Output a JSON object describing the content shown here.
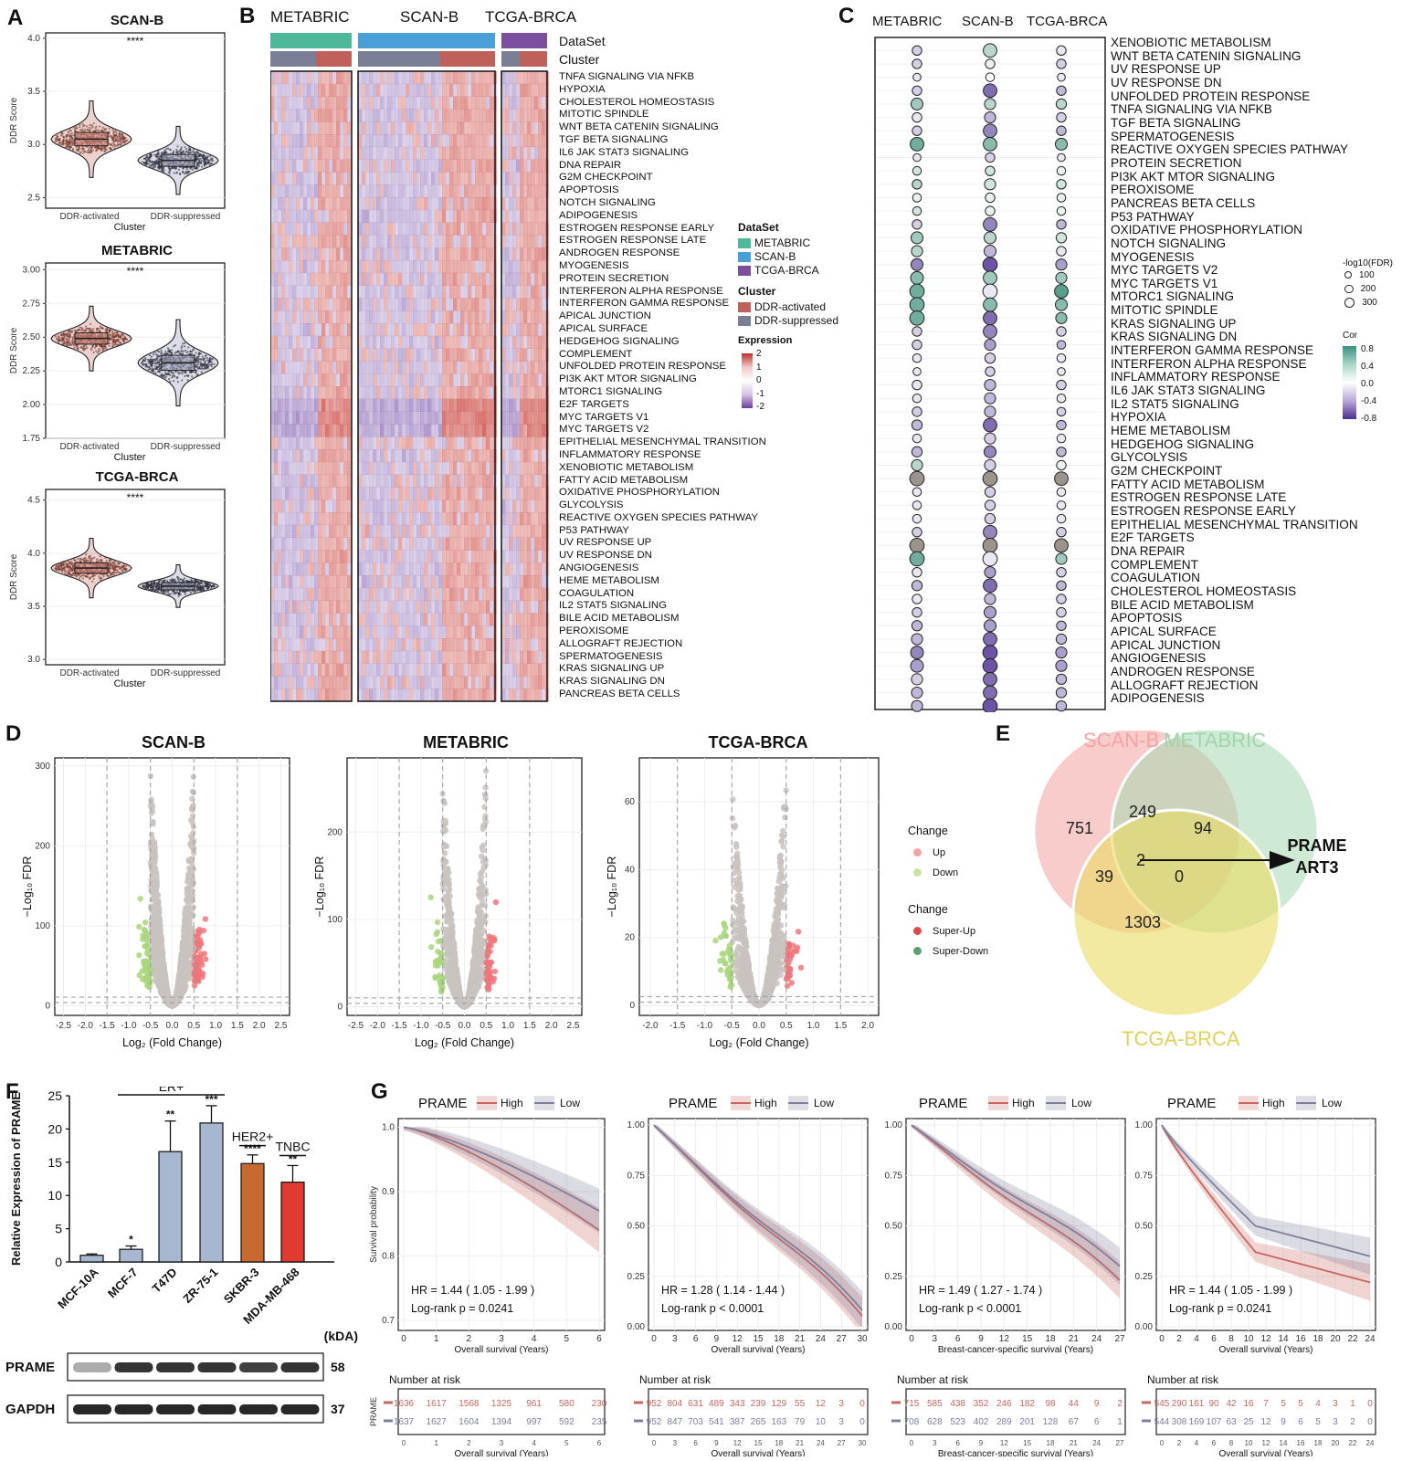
{
  "panelA": {
    "label": "A",
    "plots": [
      {
        "title": "SCAN-B",
        "sig": "****",
        "yticks": [
          "4.0",
          "3.5",
          "3.0",
          "2.5"
        ],
        "ylabel": "DDR Score",
        "xticks": [
          "DDR-activated",
          "DDR-suppressed"
        ],
        "xlabel": "Cluster"
      },
      {
        "title": "METABRIC",
        "sig": "****",
        "yticks": [
          "3.00",
          "2.75",
          "2.50",
          "2.25",
          "2.00",
          "1.75"
        ],
        "ylabel": "DDR Score",
        "xticks": [
          "DDR-activated",
          "DDR-suppressed"
        ],
        "xlabel": "Cluster"
      },
      {
        "title": "TCGA-BRCA",
        "sig": "****",
        "yticks": [
          "4.5",
          "4.0",
          "3.5",
          "3.0"
        ],
        "ylabel": "DDR Score",
        "xticks": [
          "DDR-activated",
          "DDR-suppressed"
        ],
        "xlabel": "Cluster"
      }
    ]
  },
  "panelB": {
    "label": "B",
    "datasets": [
      "METABRIC",
      "SCAN-B",
      "TCGA-BRCA"
    ],
    "track_dataset": "DataSet",
    "track_cluster": "Cluster",
    "rows": [
      "TNFA SIGNALING VIA NFKB",
      "HYPOXIA",
      "CHOLESTEROL HOMEOSTASIS",
      "MITOTIC SPINDLE",
      "WNT BETA CATENIN SIGNALING",
      "TGF BETA SIGNALING",
      "IL6 JAK STAT3 SIGNALING",
      "DNA REPAIR",
      "G2M CHECKPOINT",
      "APOPTOSIS",
      "NOTCH SIGNALING",
      "ADIPOGENESIS",
      "ESTROGEN RESPONSE EARLY",
      "ESTROGEN RESPONSE LATE",
      "ANDROGEN RESPONSE",
      "MYOGENESIS",
      "PROTEIN SECRETION",
      "INTERFERON ALPHA RESPONSE",
      "INTERFERON GAMMA RESPONSE",
      "APICAL JUNCTION",
      "APICAL SURFACE",
      "HEDGEHOG SIGNALING",
      "COMPLEMENT",
      "UNFOLDED PROTEIN RESPONSE",
      "PI3K AKT MTOR SIGNALING",
      "MTORC1 SIGNALING",
      "E2F TARGETS",
      "MYC TARGETS V1",
      "MYC TARGETS V2",
      "EPITHELIAL MESENCHYMAL TRANSITION",
      "INFLAMMATORY RESPONSE",
      "XENOBIOTIC METABOLISM",
      "FATTY ACID METABOLISM",
      "OXIDATIVE PHOSPHORYLATION",
      "GLYCOLYSIS",
      "REACTIVE OXYGEN SPECIES PATHWAY",
      "P53 PATHWAY",
      "UV RESPONSE UP",
      "UV RESPONSE DN",
      "ANGIOGENESIS",
      "HEME METABOLISM",
      "COAGULATION",
      "IL2 STAT5 SIGNALING",
      "BILE ACID METABOLISM",
      "PEROXISOME",
      "ALLOGRAFT REJECTION",
      "SPERMATOGENESIS",
      "KRAS SIGNALING UP",
      "KRAS SIGNALING DN",
      "PANCREAS BETA CELLS"
    ],
    "legend": {
      "dataset_title": "DataSet",
      "datasets": [
        {
          "name": "METABRIC",
          "color": "#4fb89a"
        },
        {
          "name": "SCAN-B",
          "color": "#4a9fd6"
        },
        {
          "name": "TCGA-BRCA",
          "color": "#7b4f9e"
        }
      ],
      "cluster_title": "Cluster",
      "clusters": [
        {
          "name": "DDR-activated",
          "color": "#c0605a"
        },
        {
          "name": "DDR-suppressed",
          "color": "#7b7f95"
        }
      ],
      "expr_title": "Expression",
      "expr_ticks": [
        "2",
        "1",
        "0",
        "-1",
        "-2"
      ]
    }
  },
  "panelC": {
    "label": "C",
    "columns": [
      "METABRIC",
      "SCAN-B",
      "TCGA-BRCA"
    ],
    "rows": [
      "XENOBIOTIC METABOLISM",
      "WNT BETA CATENIN SIGNALING",
      "UV RESPONSE UP",
      "UV RESPONSE DN",
      "UNFOLDED PROTEIN RESPONSE",
      "TNFA SIGNALING VIA NFKB",
      "TGF BETA SIGNALING",
      "SPERMATOGENESIS",
      "REACTIVE OXYGEN SPECIES PATHWAY",
      "PROTEIN SECRETION",
      "PI3K AKT MTOR SIGNALING",
      "PEROXISOME",
      "PANCREAS BETA CELLS",
      "P53 PATHWAY",
      "OXIDATIVE PHOSPHORYLATION",
      "NOTCH SIGNALING",
      "MYOGENESIS",
      "MYC TARGETS V2",
      "MYC TARGETS V1",
      "MTORC1 SIGNALING",
      "MITOTIC SPINDLE",
      "KRAS SIGNALING UP",
      "KRAS SIGNALING DN",
      "INTERFERON GAMMA RESPONSE",
      "INTERFERON ALPHA RESPONSE",
      "INFLAMMATORY RESPONSE",
      "IL6 JAK STAT3 SIGNALING",
      "IL2 STAT5 SIGNALING",
      "HYPOXIA",
      "HEME METABOLISM",
      "HEDGEHOG SIGNALING",
      "GLYCOLYSIS",
      "G2M CHECKPOINT",
      "FATTY ACID METABOLISM",
      "ESTROGEN RESPONSE LATE",
      "ESTROGEN RESPONSE EARLY",
      "EPITHELIAL MESENCHYMAL TRANSITION",
      "E2F TARGETS",
      "DNA REPAIR",
      "COMPLEMENT",
      "COAGULATION",
      "CHOLESTEROL HOMEOSTASIS",
      "BILE ACID METABOLISM",
      "APOPTOSIS",
      "APICAL SURFACE",
      "APICAL JUNCTION",
      "ANGIOGENESIS",
      "ANDROGEN RESPONSE",
      "ALLOGRAFT REJECTION",
      "ADIPOGENESIS"
    ],
    "legend": {
      "size_title": "-log10(FDR)",
      "sizes": [
        "100",
        "200",
        "300"
      ],
      "cor_title": "Cor",
      "cor_ticks": [
        "0.8",
        "0.4",
        "0.0",
        "-0.4",
        "-0.8"
      ]
    }
  },
  "panelD": {
    "label": "D",
    "plots": [
      {
        "title": "SCAN-B",
        "xticks": [
          "-2.5",
          "-2.0",
          "-1.5",
          "-1.0",
          "-0.5",
          "0.0",
          "0.5",
          "1.0",
          "1.5",
          "2.0",
          "2.5"
        ],
        "yticks": [
          "300",
          "200",
          "100",
          "0"
        ],
        "xlabel": "Log₂ (Fold Change)",
        "ylabel": "−Log₁₀ FDR"
      },
      {
        "title": "METABRIC",
        "xticks": [
          "-2.5",
          "-2.0",
          "-1.5",
          "-1.0",
          "-0.5",
          "0.0",
          "0.5",
          "1.0",
          "1.5",
          "2.0",
          "2.5"
        ],
        "yticks": [
          "200",
          "100",
          "0"
        ],
        "xlabel": "Log₂ (Fold Change)",
        "ylabel": "−Log₁₀ FDR"
      },
      {
        "title": "TCGA-BRCA",
        "xticks": [
          "-2.0",
          "-1.5",
          "-1.0",
          "-0.5",
          "0.0",
          "0.5",
          "1.0",
          "1.5",
          "2.0"
        ],
        "yticks": [
          "60",
          "40",
          "20",
          "0"
        ],
        "xlabel": "Log₂ (Fold Change)",
        "ylabel": "−Log₁₀ FDR"
      }
    ],
    "legend": {
      "title1": "Change",
      "items1": [
        {
          "name": "Up",
          "color": "#f4a3a3"
        },
        {
          "name": "Down",
          "color": "#c8e6a0"
        }
      ],
      "title2": "Change",
      "items2": [
        {
          "name": "Super-Up",
          "color": "#e04a4a"
        },
        {
          "name": "Super-Down",
          "color": "#5e9f6e"
        }
      ]
    }
  },
  "panelE": {
    "label": "E",
    "sets": [
      {
        "name": "SCAN-B",
        "color": "#f4a3a3"
      },
      {
        "name": "METABRIC",
        "color": "#a8d8b0"
      },
      {
        "name": "TCGA-BRCA",
        "color": "#e8dc60"
      }
    ],
    "counts": {
      "scan_only": "751",
      "scan_meta": "249",
      "meta_only": "94",
      "all": "2",
      "scan_tcga": "39",
      "meta_tcga": "0",
      "tcga_only": "1303"
    },
    "genes": [
      "PRAME",
      "ART3"
    ]
  },
  "panelF": {
    "label": "F",
    "ylabel": "Relative Expression of PRAME",
    "yticks": [
      "25",
      "20",
      "15",
      "10",
      "5",
      "0"
    ],
    "groups": {
      "er": "ER+",
      "her2": "HER2+",
      "tnbc": "TNBC"
    },
    "unit": "(kDA)",
    "blot": [
      {
        "name": "PRAME",
        "kda": "58"
      },
      {
        "name": "GAPDH",
        "kda": "37"
      }
    ],
    "chart_data": {
      "type": "bar",
      "categories": [
        "MCF-10A",
        "MCF-7",
        "T47D",
        "ZR-75-1",
        "SKBR-3",
        "MDA-MB-468"
      ],
      "values": [
        1.0,
        1.9,
        16.6,
        20.9,
        14.8,
        12.0
      ],
      "errors": [
        0.2,
        0.5,
        4.6,
        2.6,
        1.3,
        2.5
      ],
      "sig": [
        "",
        "*",
        "**",
        "***",
        "****",
        "**"
      ],
      "colors": [
        "#a7b7cf",
        "#a7b7cf",
        "#a7b7cf",
        "#a7b7cf",
        "#c8692f",
        "#e23a2f"
      ],
      "ylim": [
        0,
        25
      ]
    }
  },
  "panelG": {
    "label": "G",
    "plots": [
      {
        "legend": "PRAME",
        "high": "High",
        "low": "Low",
        "hr": "HR =  1.44 ( 1.05 - 1.99 )",
        "p": "Log-rank p =  0.0241",
        "yticks": [
          "1.0",
          "0.9",
          "0.8",
          "0.7"
        ],
        "xticks": [
          "0",
          "1",
          "2",
          "3",
          "4",
          "5",
          "6"
        ],
        "xlabel": "Overall survival (Years)",
        "ylabel": "Survival probability",
        "risk_title": "Number at risk",
        "risk_high": [
          "1636",
          "1617",
          "1568",
          "1325",
          "961",
          "580",
          "230"
        ],
        "risk_low": [
          "1637",
          "1627",
          "1604",
          "1394",
          "997",
          "592",
          "235"
        ],
        "risk_xlabel": "Overall survival (Years)"
      },
      {
        "legend": "PRAME",
        "high": "High",
        "low": "Low",
        "hr": "HR =  1.28 ( 1.14 - 1.44 )",
        "p": "Log-rank p <  0.0001",
        "yticks": [
          "1.00",
          "0.75",
          "0.50",
          "0.25",
          "0.00"
        ],
        "xticks": [
          "0",
          "3",
          "6",
          "9",
          "12",
          "15",
          "18",
          "21",
          "24",
          "27",
          "30"
        ],
        "xlabel": "Overall survival (Years)",
        "ylabel": "",
        "risk_title": "Number at risk",
        "risk_high": [
          "952",
          "804",
          "631",
          "489",
          "343",
          "239",
          "129",
          "55",
          "12",
          "3",
          "0"
        ],
        "risk_low": [
          "952",
          "847",
          "703",
          "541",
          "387",
          "265",
          "163",
          "79",
          "10",
          "3",
          "0"
        ],
        "risk_xlabel": "Overall survival (Years)"
      },
      {
        "legend": "PRAME",
        "high": "High",
        "low": "Low",
        "hr": "HR =  1.49 ( 1.27 - 1.74 )",
        "p": "Log-rank p <  0.0001",
        "yticks": [
          "1.00",
          "0.75",
          "0.50",
          "0.25",
          "0.00"
        ],
        "xticks": [
          "0",
          "3",
          "6",
          "9",
          "12",
          "15",
          "18",
          "21",
          "24",
          "27"
        ],
        "xlabel": "Breast-cancer-specific survival (Years)",
        "ylabel": "",
        "risk_title": "Number at risk",
        "risk_high": [
          "715",
          "585",
          "438",
          "352",
          "246",
          "182",
          "98",
          "44",
          "9",
          "2"
        ],
        "risk_low": [
          "708",
          "628",
          "523",
          "402",
          "289",
          "201",
          "128",
          "67",
          "6",
          "1"
        ],
        "risk_xlabel": "Breast-cancer-specific survival (Years)"
      },
      {
        "legend": "PRAME",
        "high": "High",
        "low": "Low",
        "hr": "HR =  1.44 ( 1.05 - 1.99 )",
        "p": "Log-rank p =  0.0241",
        "yticks": [
          "1.00",
          "0.75",
          "0.50",
          "0.25",
          "0.00"
        ],
        "xticks": [
          "0",
          "2",
          "4",
          "6",
          "8",
          "10",
          "12",
          "14",
          "16",
          "18",
          "20",
          "22",
          "24"
        ],
        "xlabel": "Overall survival (Years)",
        "ylabel": "",
        "risk_title": "Number at risk",
        "risk_high": [
          "545",
          "290",
          "161",
          "90",
          "42",
          "16",
          "7",
          "5",
          "5",
          "4",
          "3",
          "1",
          "0"
        ],
        "risk_low": [
          "544",
          "308",
          "169",
          "107",
          "63",
          "25",
          "12",
          "9",
          "6",
          "5",
          "3",
          "2",
          "0"
        ],
        "risk_xlabel": "Overall survival (Years)"
      }
    ],
    "risk_ylabel": "PRAME"
  }
}
